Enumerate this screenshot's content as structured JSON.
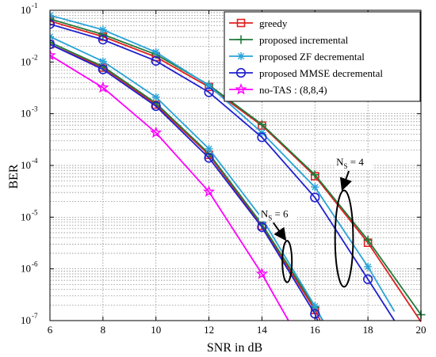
{
  "chart_data": {
    "type": "line",
    "xlabel": "SNR in dB",
    "ylabel": "BER",
    "xlim": [
      6,
      20
    ],
    "ylim": [
      1e-07,
      0.1
    ],
    "yscale": "log",
    "grid": true,
    "legend_position": "top-right",
    "x_ticks": [
      "6",
      "8",
      "10",
      "12",
      "14",
      "16",
      "18",
      "20"
    ],
    "y_ticks": [
      {
        "base": "10",
        "exp": "-1",
        "value": 0.1
      },
      {
        "base": "10",
        "exp": "-2",
        "value": 0.01
      },
      {
        "base": "10",
        "exp": "-3",
        "value": 0.001
      },
      {
        "base": "10",
        "exp": "-4",
        "value": 0.0001
      },
      {
        "base": "10",
        "exp": "-5",
        "value": 1e-05
      },
      {
        "base": "10",
        "exp": "-6",
        "value": 1e-06
      },
      {
        "base": "10",
        "exp": "-7",
        "value": 1e-07
      }
    ],
    "series": [
      {
        "name": "greedy",
        "color": "#e02020",
        "marker": "square",
        "group": "NS=4",
        "points": [
          [
            6,
            0.062
          ],
          [
            8,
            0.031
          ],
          [
            10,
            0.0125
          ],
          [
            12,
            0.0033
          ],
          [
            14,
            0.00059
          ],
          [
            16,
            6.2e-05
          ],
          [
            18,
            3.2e-06
          ],
          [
            20,
            9.5e-08
          ]
        ]
      },
      {
        "name": "proposed incremental",
        "color": "#207a3a",
        "marker": "plus",
        "group": "NS=4",
        "points": [
          [
            6,
            0.068
          ],
          [
            8,
            0.034
          ],
          [
            10,
            0.014
          ],
          [
            12,
            0.0036
          ],
          [
            14,
            0.00062
          ],
          [
            16,
            6.6e-05
          ],
          [
            18,
            3.6e-06
          ],
          [
            20,
            1.3e-07
          ]
        ]
      },
      {
        "name": "proposed ZF decremental",
        "color": "#2aa3d8",
        "marker": "asterisk",
        "group": "NS=4",
        "points": [
          [
            6,
            0.08
          ],
          [
            8,
            0.042
          ],
          [
            10,
            0.0155
          ],
          [
            12,
            0.0035
          ],
          [
            14,
            0.00043
          ],
          [
            16,
            3.8e-05
          ],
          [
            18,
            1.1e-06
          ],
          [
            19,
            1.5e-07
          ]
        ]
      },
      {
        "name": "proposed MMSE decremental",
        "color": "#2020d0",
        "marker": "circle",
        "group": "NS=4",
        "points": [
          [
            6,
            0.054
          ],
          [
            8,
            0.027
          ],
          [
            10,
            0.0105
          ],
          [
            12,
            0.0026
          ],
          [
            14,
            0.00035
          ],
          [
            16,
            2.4e-05
          ],
          [
            18,
            6.3e-07
          ],
          [
            19,
            1e-07
          ]
        ]
      },
      {
        "name": "greedy",
        "color": "#e02020",
        "marker": "square",
        "group": "NS=6",
        "in_legend": false,
        "points": [
          [
            6,
            0.022
          ],
          [
            8,
            0.0078
          ],
          [
            10,
            0.0015
          ],
          [
            12,
            0.00016
          ],
          [
            14,
            6.8e-06
          ],
          [
            16,
            1.6e-07
          ],
          [
            16.2,
            1e-07
          ]
        ]
      },
      {
        "name": "proposed incremental",
        "color": "#207a3a",
        "marker": "plus",
        "group": "NS=6",
        "in_legend": false,
        "points": [
          [
            6,
            0.024
          ],
          [
            8,
            0.0082
          ],
          [
            10,
            0.0016
          ],
          [
            12,
            0.00017
          ],
          [
            14,
            7.3e-06
          ],
          [
            16,
            1.8e-07
          ],
          [
            16.3,
            1e-07
          ]
        ]
      },
      {
        "name": "proposed ZF decremental",
        "color": "#2aa3d8",
        "marker": "asterisk",
        "group": "NS=6",
        "in_legend": false,
        "points": [
          [
            6,
            0.031
          ],
          [
            8,
            0.0103
          ],
          [
            10,
            0.0021
          ],
          [
            12,
            0.00021
          ],
          [
            14,
            9.5e-06
          ],
          [
            16,
            1.9e-07
          ],
          [
            16.3,
            1e-07
          ]
        ]
      },
      {
        "name": "proposed MMSE decremental",
        "color": "#2020d0",
        "marker": "circle",
        "group": "NS=6",
        "in_legend": false,
        "points": [
          [
            6,
            0.022
          ],
          [
            8,
            0.0072
          ],
          [
            10,
            0.0014
          ],
          [
            12,
            0.00014
          ],
          [
            14,
            6.4e-06
          ],
          [
            16,
            1.35e-07
          ],
          [
            16.1,
            1e-07
          ]
        ]
      },
      {
        "name": "no-TAS : (8,8,4)",
        "color": "#ff00ff",
        "marker": "star",
        "group": "no-TAS",
        "points": [
          [
            6,
            0.0135
          ],
          [
            8,
            0.0032
          ],
          [
            10,
            0.00043
          ],
          [
            12,
            3.1e-05
          ],
          [
            14,
            8e-07
          ],
          [
            15,
            1e-07
          ]
        ]
      }
    ],
    "annotations": [
      {
        "label_base": "N",
        "label_sub": "S",
        "label_rest": " = 4",
        "ellipse_center": [
          17.1,
          3.5e-06
        ],
        "ellipse_rx_x": 0.34,
        "ellipse_top": 3.3e-05,
        "ellipse_bottom": 4.5e-07,
        "label_anchor": [
          17.4,
          0.0001
        ],
        "arrow_to": [
          17.05,
          3.3e-05
        ]
      },
      {
        "label_base": "N",
        "label_sub": "S",
        "label_rest": " = 6",
        "ellipse_center": [
          14.95,
          1.5e-06
        ],
        "ellipse_rx_x": 0.18,
        "ellipse_top": 3.5e-06,
        "ellipse_bottom": 5.5e-07,
        "label_anchor": [
          14.55,
          1e-05
        ],
        "arrow_to": [
          14.85,
          3.5e-06
        ]
      }
    ]
  }
}
